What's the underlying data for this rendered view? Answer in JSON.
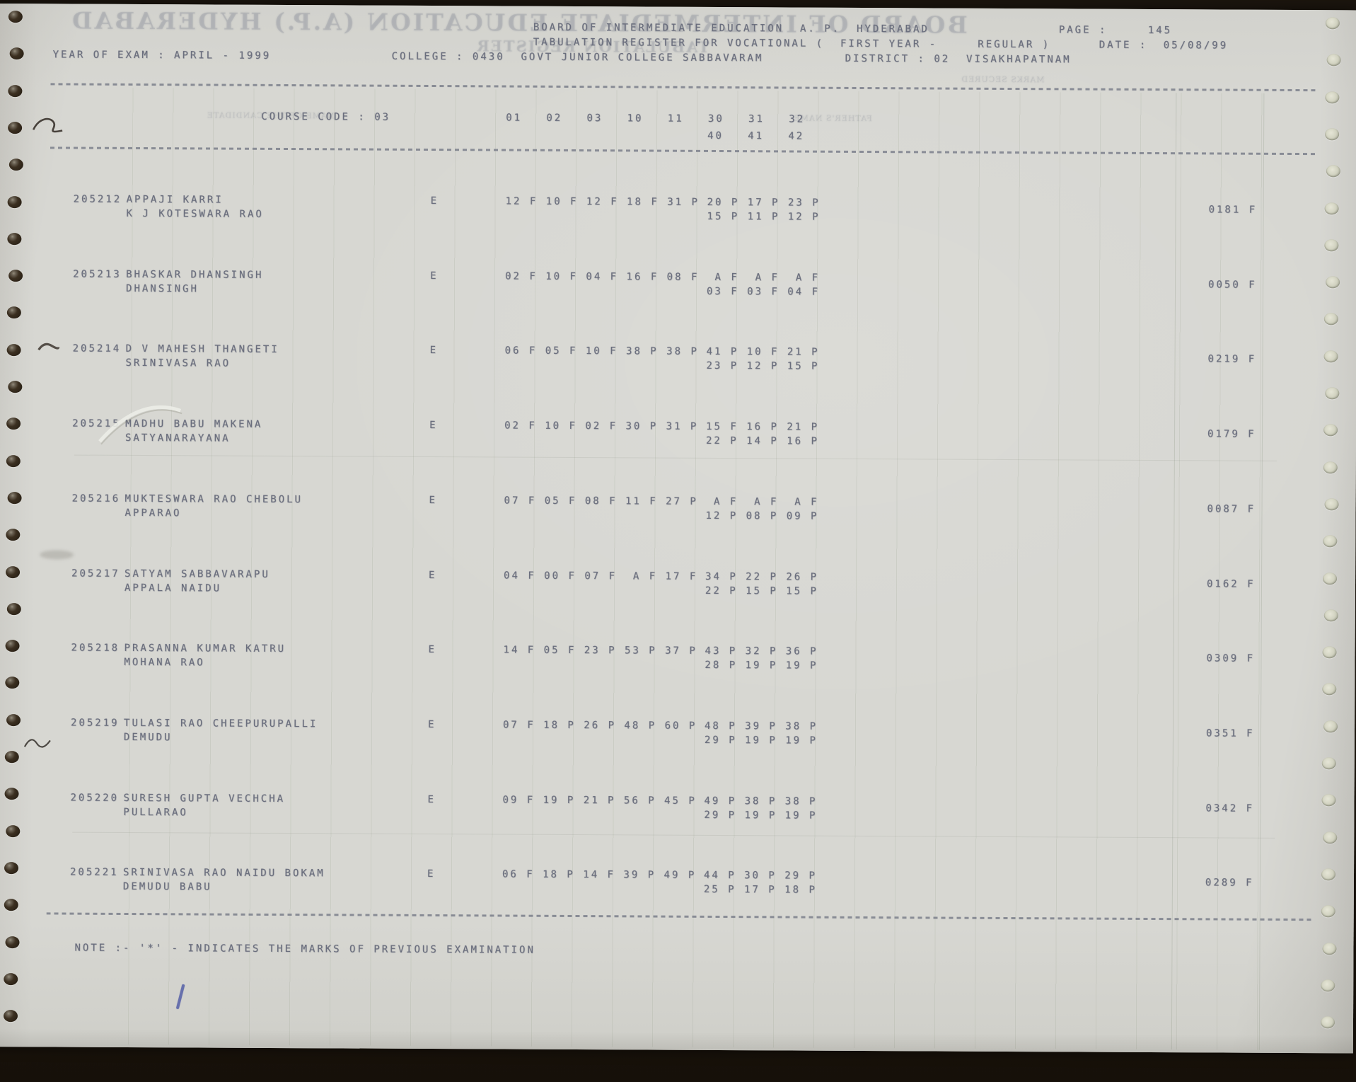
{
  "colors": {
    "paper": "#d6d6d1",
    "ink": "#6a6e7d",
    "background": "#1b150e",
    "pen_blue": "#4d58a5"
  },
  "header": {
    "board_line": "BOARD OF INTERMEDIATE EDUCATION  A. P.  HYDERABAD",
    "page_label": "PAGE :",
    "page_value": "145",
    "register_line": "TABULATION REGISTER FOR VOCATIONAL (  FIRST YEAR -     REGULAR )",
    "date_label": "DATE :",
    "date_value": "05/08/99",
    "year_of_exam": "YEAR OF EXAM : APRIL - 1999",
    "college": "COLLEGE : 0430  GOVT JUNIOR COLLEGE SABBAVARAM",
    "district": "DISTRICT : 02  VISAKHAPATNAM"
  },
  "course": {
    "label": "COURSE CODE : 03",
    "columns_row1": "01   02   03   10   11   30   31   32",
    "columns_row2": "40   41   42"
  },
  "students": [
    {
      "regno": "205212",
      "name": "APPAJI KARRI",
      "father": "K J KOTESWARA RAO",
      "medium": "E",
      "marks_line1": "12 F 10 F 12 F 18 F 31 P",
      "marks_line2a": "20 P 17 P 23 P",
      "marks_line2b": "15 P 11 P 12 P",
      "total": "0181 F"
    },
    {
      "regno": "205213",
      "name": "BHASKAR DHANSINGH",
      "father": "DHANSINGH",
      "medium": "E",
      "marks_line1": "02 F 10 F 04 F 16 F 08 F",
      "marks_line2a": " A F  A F  A F",
      "marks_line2b": "03 F 03 F 04 F",
      "total": "0050 F"
    },
    {
      "regno": "205214",
      "name": "D V MAHESH THANGETI",
      "father": "SRINIVASA RAO",
      "medium": "E",
      "marks_line1": "06 F 05 F 10 F 38 P 38 P",
      "marks_line2a": "41 P 10 F 21 P",
      "marks_line2b": "23 P 12 P 15 P",
      "total": "0219 F"
    },
    {
      "regno": "205215",
      "name": "MADHU BABU MAKENA",
      "father": "SATYANARAYANA",
      "medium": "E",
      "marks_line1": "02 F 10 F 02 F 30 P 31 P",
      "marks_line2a": "15 F 16 P 21 P",
      "marks_line2b": "22 P 14 P 16 P",
      "total": "0179 F"
    },
    {
      "regno": "205216",
      "name": "MUKTESWARA RAO CHEBOLU",
      "father": "APPARAO",
      "medium": "E",
      "marks_line1": "07 F 05 F 08 F 11 F 27 P",
      "marks_line2a": " A F  A F  A F",
      "marks_line2b": "12 P 08 P 09 P",
      "total": "0087 F"
    },
    {
      "regno": "205217",
      "name": "SATYAM SABBAVARAPU",
      "father": "APPALA NAIDU",
      "medium": "E",
      "marks_line1": "04 F 00 F 07 F  A F 17 F",
      "marks_line2a": "34 P 22 P 26 P",
      "marks_line2b": "22 P 15 P 15 P",
      "total": "0162 F"
    },
    {
      "regno": "205218",
      "name": "PRASANNA KUMAR KATRU",
      "father": "MOHANA RAO",
      "medium": "E",
      "marks_line1": "14 F 05 F 23 P 53 P 37 P",
      "marks_line2a": "43 P 32 P 36 P",
      "marks_line2b": "28 P 19 P 19 P",
      "total": "0309 F"
    },
    {
      "regno": "205219",
      "name": "TULASI RAO CHEEPURUPALLI",
      "father": "DEMUDU",
      "medium": "E",
      "marks_line1": "07 F 18 P 26 P 48 P 60 P",
      "marks_line2a": "48 P 39 P 38 P",
      "marks_line2b": "29 P 19 P 19 P",
      "total": "0351 F"
    },
    {
      "regno": "205220",
      "name": "SURESH GUPTA VECHCHA",
      "father": "PULLARAO",
      "medium": "E",
      "marks_line1": "09 F 19 P 21 P 56 P 45 P",
      "marks_line2a": "49 P 38 P 38 P",
      "marks_line2b": "29 P 19 P 19 P",
      "total": "0342 F"
    },
    {
      "regno": "205221",
      "name": "SRINIVASA RAO NAIDU BOKAM",
      "father": "DEMUDU BABU",
      "medium": "E",
      "marks_line1": "06 F 18 P 14 F 39 P 49 P",
      "marks_line2a": "44 P 30 P 29 P",
      "marks_line2b": "25 P 17 P 18 P",
      "total": "0289 F"
    }
  ],
  "note": "NOTE :- '*' - INDICATES THE MARKS OF PREVIOUS EXAMINATION",
  "bleed_through": {
    "title": "BOARD OF INTERMEDIATE EDUCATION (A.P.) HYDERABAD",
    "subtitle": "TABULATION REGISTER",
    "label1": "NAME OF THE CANDIDATE",
    "label2": "FATHER'S NAME",
    "label3": "MARKS SECURED"
  }
}
